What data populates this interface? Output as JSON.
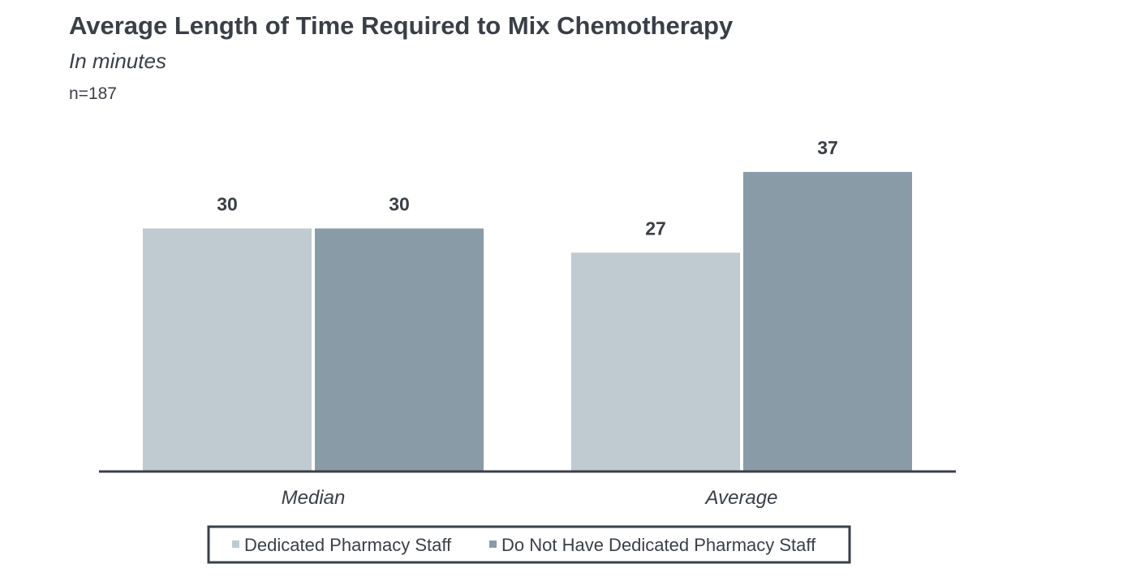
{
  "chart_data": {
    "type": "bar",
    "title": "Average Length of Time Required to Mix Chemotherapy",
    "subtitle": "In minutes",
    "note": "n=187",
    "categories": [
      "Median",
      "Average"
    ],
    "series": [
      {
        "name": "Dedicated Pharmacy Staff",
        "values": [
          30,
          27
        ],
        "color": "#c0cad1"
      },
      {
        "name": "Do Not Have Dedicated Pharmacy Staff",
        "values": [
          30,
          37
        ],
        "color": "#8a9ba8"
      }
    ],
    "ylim": [
      0,
      37
    ],
    "grid": false,
    "legend_position": "bottom",
    "axis_color": "#3a3f47"
  }
}
